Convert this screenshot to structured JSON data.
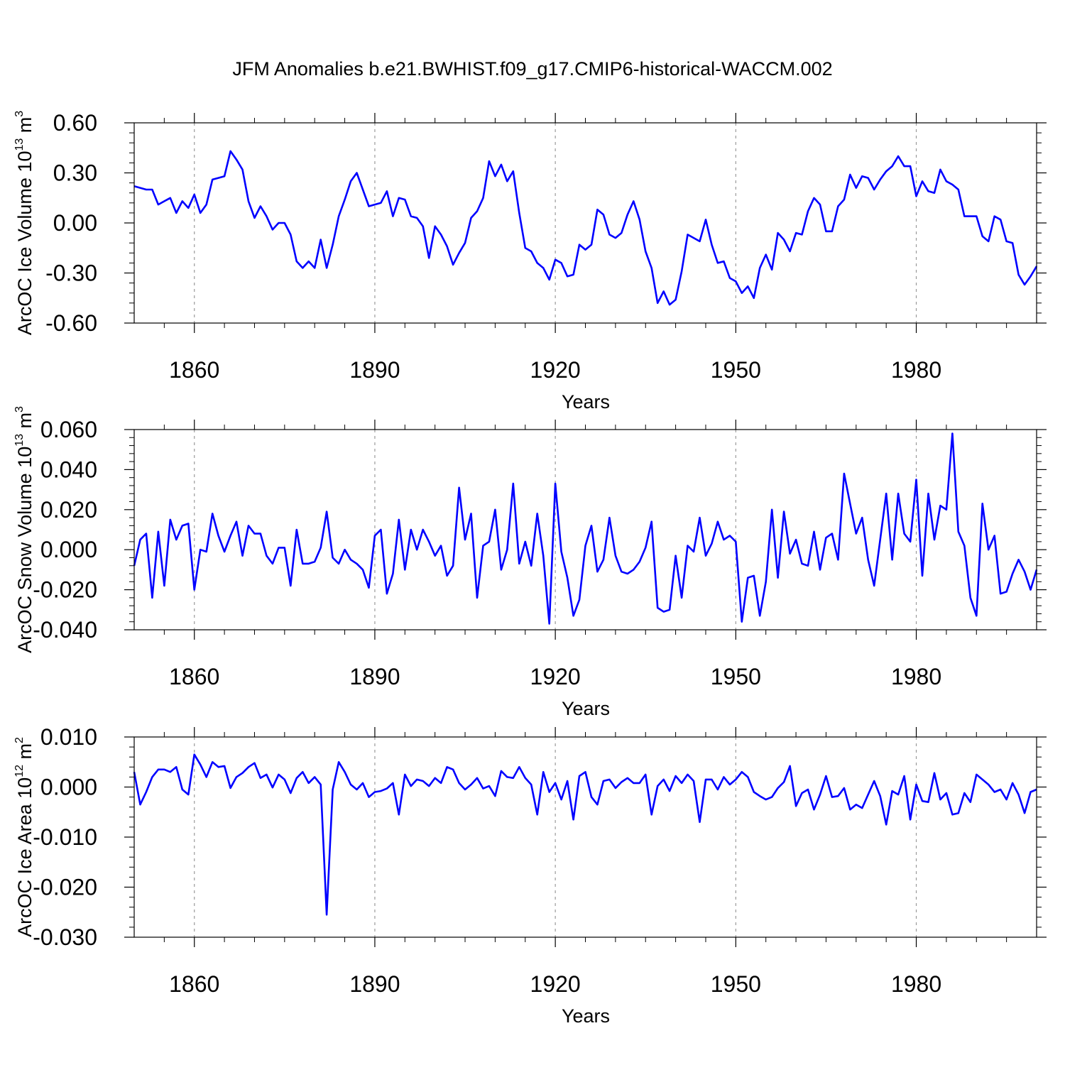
{
  "chart_data": {
    "type": "line",
    "title": "JFM Anomalies b.e21.BWHIST.f09_g17.CMIP6-historical-WACCM.002",
    "panels": [
      {
        "id": "ice-volume",
        "ylabel": "ArcOC Ice Volume 10",
        "ylabel_exp": "13",
        "ylabel_unit": " m",
        "ylabel_unit_exp": "3",
        "xlabel": "Years",
        "xlim": [
          1850,
          2000
        ],
        "xticks": [
          1860,
          1890,
          1920,
          1950,
          1980
        ],
        "xtick_labels": [
          "1860",
          "1890",
          "1920",
          "1950",
          "1980"
        ],
        "ylim": [
          -0.6,
          0.6
        ],
        "yticks": [
          -0.6,
          -0.3,
          0.0,
          0.3,
          0.6
        ],
        "ytick_labels": [
          "-0.60",
          "-0.30",
          "0.00",
          "0.30",
          "0.60"
        ],
        "grid_x": true,
        "series": [
          {
            "name": "ArcOC Ice Volume",
            "color": "#0000ff",
            "start_year": 1850,
            "values": [
              0.22,
              0.21,
              0.2,
              0.2,
              0.11,
              0.13,
              0.15,
              0.06,
              0.13,
              0.09,
              0.17,
              0.06,
              0.11,
              0.26,
              0.27,
              0.28,
              0.43,
              0.38,
              0.32,
              0.13,
              0.03,
              0.1,
              0.04,
              -0.04,
              0.0,
              0.0,
              -0.07,
              -0.23,
              -0.27,
              -0.23,
              -0.27,
              -0.1,
              -0.27,
              -0.13,
              0.04,
              0.14,
              0.25,
              0.3,
              0.2,
              0.1,
              0.11,
              0.12,
              0.19,
              0.04,
              0.15,
              0.14,
              0.04,
              0.03,
              -0.02,
              -0.21,
              -0.02,
              -0.07,
              -0.14,
              -0.25,
              -0.18,
              -0.12,
              0.03,
              0.07,
              0.15,
              0.37,
              0.28,
              0.35,
              0.25,
              0.31,
              0.06,
              -0.15,
              -0.17,
              -0.24,
              -0.27,
              -0.34,
              -0.22,
              -0.24,
              -0.32,
              -0.31,
              -0.13,
              -0.16,
              -0.13,
              0.08,
              0.05,
              -0.07,
              -0.09,
              -0.06,
              0.05,
              0.13,
              0.02,
              -0.17,
              -0.27,
              -0.48,
              -0.41,
              -0.49,
              -0.46,
              -0.29,
              -0.07,
              -0.09,
              -0.11,
              0.02,
              -0.13,
              -0.24,
              -0.23,
              -0.33,
              -0.35,
              -0.42,
              -0.38,
              -0.45,
              -0.27,
              -0.19,
              -0.28,
              -0.06,
              -0.1,
              -0.17,
              -0.06,
              -0.07,
              0.07,
              0.15,
              0.11,
              -0.05,
              -0.05,
              0.1,
              0.14,
              0.29,
              0.21,
              0.28,
              0.27,
              0.2,
              0.26,
              0.31,
              0.34,
              0.4,
              0.34,
              0.34,
              0.16,
              0.25,
              0.19,
              0.18,
              0.32,
              0.25,
              0.23,
              0.2,
              0.04,
              0.04,
              0.04,
              -0.08,
              -0.11,
              0.04,
              0.02,
              -0.11,
              -0.12,
              -0.31,
              -0.37,
              -0.32,
              -0.26
            ]
          }
        ]
      },
      {
        "id": "snow-volume",
        "ylabel": "ArcOC Snow Volume 10",
        "ylabel_exp": "13",
        "ylabel_unit": " m",
        "ylabel_unit_exp": "3",
        "xlabel": "Years",
        "xlim": [
          1850,
          2000
        ],
        "xticks": [
          1860,
          1890,
          1920,
          1950,
          1980
        ],
        "xtick_labels": [
          "1860",
          "1890",
          "1920",
          "1950",
          "1980"
        ],
        "ylim": [
          -0.04,
          0.06
        ],
        "yticks": [
          -0.04,
          -0.02,
          0.0,
          0.02,
          0.04,
          0.06
        ],
        "ytick_labels": [
          "-0.040",
          "-0.020",
          "0.000",
          "0.020",
          "0.040",
          "0.060"
        ],
        "grid_x": true,
        "series": [
          {
            "name": "ArcOC Snow Volume",
            "color": "#0000ff",
            "start_year": 1850,
            "values": [
              -0.008,
              0.005,
              0.008,
              -0.024,
              0.009,
              -0.018,
              0.015,
              0.005,
              0.012,
              0.013,
              -0.02,
              0.0,
              -0.001,
              0.018,
              0.007,
              -0.001,
              0.007,
              0.014,
              -0.003,
              0.012,
              0.008,
              0.008,
              -0.003,
              -0.007,
              0.001,
              0.001,
              -0.018,
              0.01,
              -0.007,
              -0.007,
              -0.006,
              0.001,
              0.019,
              -0.004,
              -0.007,
              0.0,
              -0.005,
              -0.007,
              -0.01,
              -0.019,
              0.007,
              0.01,
              -0.022,
              -0.012,
              0.015,
              -0.01,
              0.01,
              0.0,
              0.01,
              0.004,
              -0.003,
              0.002,
              -0.013,
              -0.008,
              0.031,
              0.005,
              0.018,
              -0.024,
              0.002,
              0.004,
              0.02,
              -0.01,
              0.0,
              0.033,
              -0.007,
              0.004,
              -0.008,
              0.018,
              -0.003,
              -0.037,
              0.033,
              -0.001,
              -0.014,
              -0.033,
              -0.025,
              0.002,
              0.012,
              -0.011,
              -0.005,
              0.016,
              -0.003,
              -0.011,
              -0.012,
              -0.01,
              -0.006,
              0.001,
              0.014,
              -0.029,
              -0.031,
              -0.03,
              -0.003,
              -0.024,
              0.002,
              -0.001,
              0.016,
              -0.003,
              0.003,
              0.014,
              0.005,
              0.007,
              0.004,
              -0.036,
              -0.014,
              -0.013,
              -0.033,
              -0.016,
              0.02,
              -0.014,
              0.019,
              -0.002,
              0.005,
              -0.007,
              -0.008,
              0.009,
              -0.01,
              0.006,
              0.008,
              -0.005,
              0.038,
              0.023,
              0.008,
              0.016,
              -0.005,
              -0.018,
              0.005,
              0.028,
              -0.005,
              0.028,
              0.008,
              0.004,
              0.035,
              -0.013,
              0.028,
              0.005,
              0.022,
              0.02,
              0.058,
              0.009,
              0.002,
              -0.024,
              -0.033,
              0.023,
              0.0,
              0.007,
              -0.022,
              -0.021,
              -0.012,
              -0.005,
              -0.011,
              -0.02,
              -0.01
            ]
          }
        ]
      },
      {
        "id": "ice-area",
        "ylabel": "ArcOC Ice Area 10",
        "ylabel_exp": "12",
        "ylabel_unit": " m",
        "ylabel_unit_exp": "2",
        "xlabel": "Years",
        "xlim": [
          1850,
          2000
        ],
        "xticks": [
          1860,
          1890,
          1920,
          1950,
          1980
        ],
        "xtick_labels": [
          "1860",
          "1890",
          "1920",
          "1950",
          "1980"
        ],
        "ylim": [
          -0.03,
          0.01
        ],
        "yticks": [
          -0.03,
          -0.02,
          -0.01,
          0.0,
          0.01
        ],
        "ytick_labels": [
          "-0.030",
          "-0.020",
          "-0.010",
          "0.000",
          "0.010"
        ],
        "grid_x": true,
        "series": [
          {
            "name": "ArcOC Ice Area",
            "color": "#0000ff",
            "start_year": 1850,
            "values": [
              0.003,
              -0.0035,
              -0.001,
              0.002,
              0.0035,
              0.0035,
              0.003,
              0.004,
              -0.0005,
              -0.0015,
              0.0065,
              0.0045,
              0.002,
              0.005,
              0.004,
              0.0042,
              -0.0002,
              0.002,
              0.0028,
              0.004,
              0.0048,
              0.0018,
              0.0025,
              -0.0001,
              0.0025,
              0.0015,
              -0.0012,
              0.0018,
              0.003,
              0.0008,
              0.002,
              0.0005,
              -0.0255,
              -0.0005,
              0.005,
              0.003,
              0.0005,
              -0.0005,
              0.0008,
              -0.002,
              -0.001,
              -0.0008,
              -0.0003,
              0.0008,
              -0.0055,
              0.0025,
              0.0002,
              0.0015,
              0.0012,
              0.0002,
              0.0018,
              0.0008,
              0.004,
              0.0035,
              0.0008,
              -0.0005,
              0.0005,
              0.0018,
              -0.0003,
              0.0002,
              -0.0018,
              0.0032,
              0.002,
              0.0018,
              0.004,
              0.0018,
              0.0005,
              -0.0055,
              0.003,
              -0.001,
              0.0008,
              -0.0025,
              0.0012,
              -0.0065,
              0.0022,
              0.003,
              -0.002,
              -0.0035,
              0.0012,
              0.0015,
              -0.0002,
              0.001,
              0.0018,
              0.0008,
              0.0008,
              0.0025,
              -0.0055,
              0.0002,
              0.0015,
              -0.0008,
              0.0022,
              0.0008,
              0.0025,
              0.0012,
              -0.007,
              0.0015,
              0.0015,
              -0.0005,
              0.002,
              0.0005,
              0.0015,
              0.003,
              0.002,
              -0.001,
              -0.0018,
              -0.0025,
              -0.002,
              -0.0002,
              0.001,
              0.0042,
              -0.0038,
              -0.0012,
              -0.0005,
              -0.0045,
              -0.0015,
              0.0022,
              -0.002,
              -0.0018,
              -0.0002,
              -0.0045,
              -0.0035,
              -0.0042,
              -0.0015,
              0.0012,
              -0.0018,
              -0.0075,
              -0.0008,
              -0.0015,
              0.0022,
              -0.0065,
              0.0005,
              -0.0028,
              -0.003,
              0.0028,
              -0.0025,
              -0.0012,
              -0.0055,
              -0.0052,
              -0.0012,
              -0.003,
              0.0025,
              0.0015,
              0.0005,
              -0.001,
              -0.0005,
              -0.0025,
              0.0008,
              -0.0015,
              -0.0052,
              -0.001,
              -0.0005
            ]
          }
        ]
      }
    ]
  }
}
